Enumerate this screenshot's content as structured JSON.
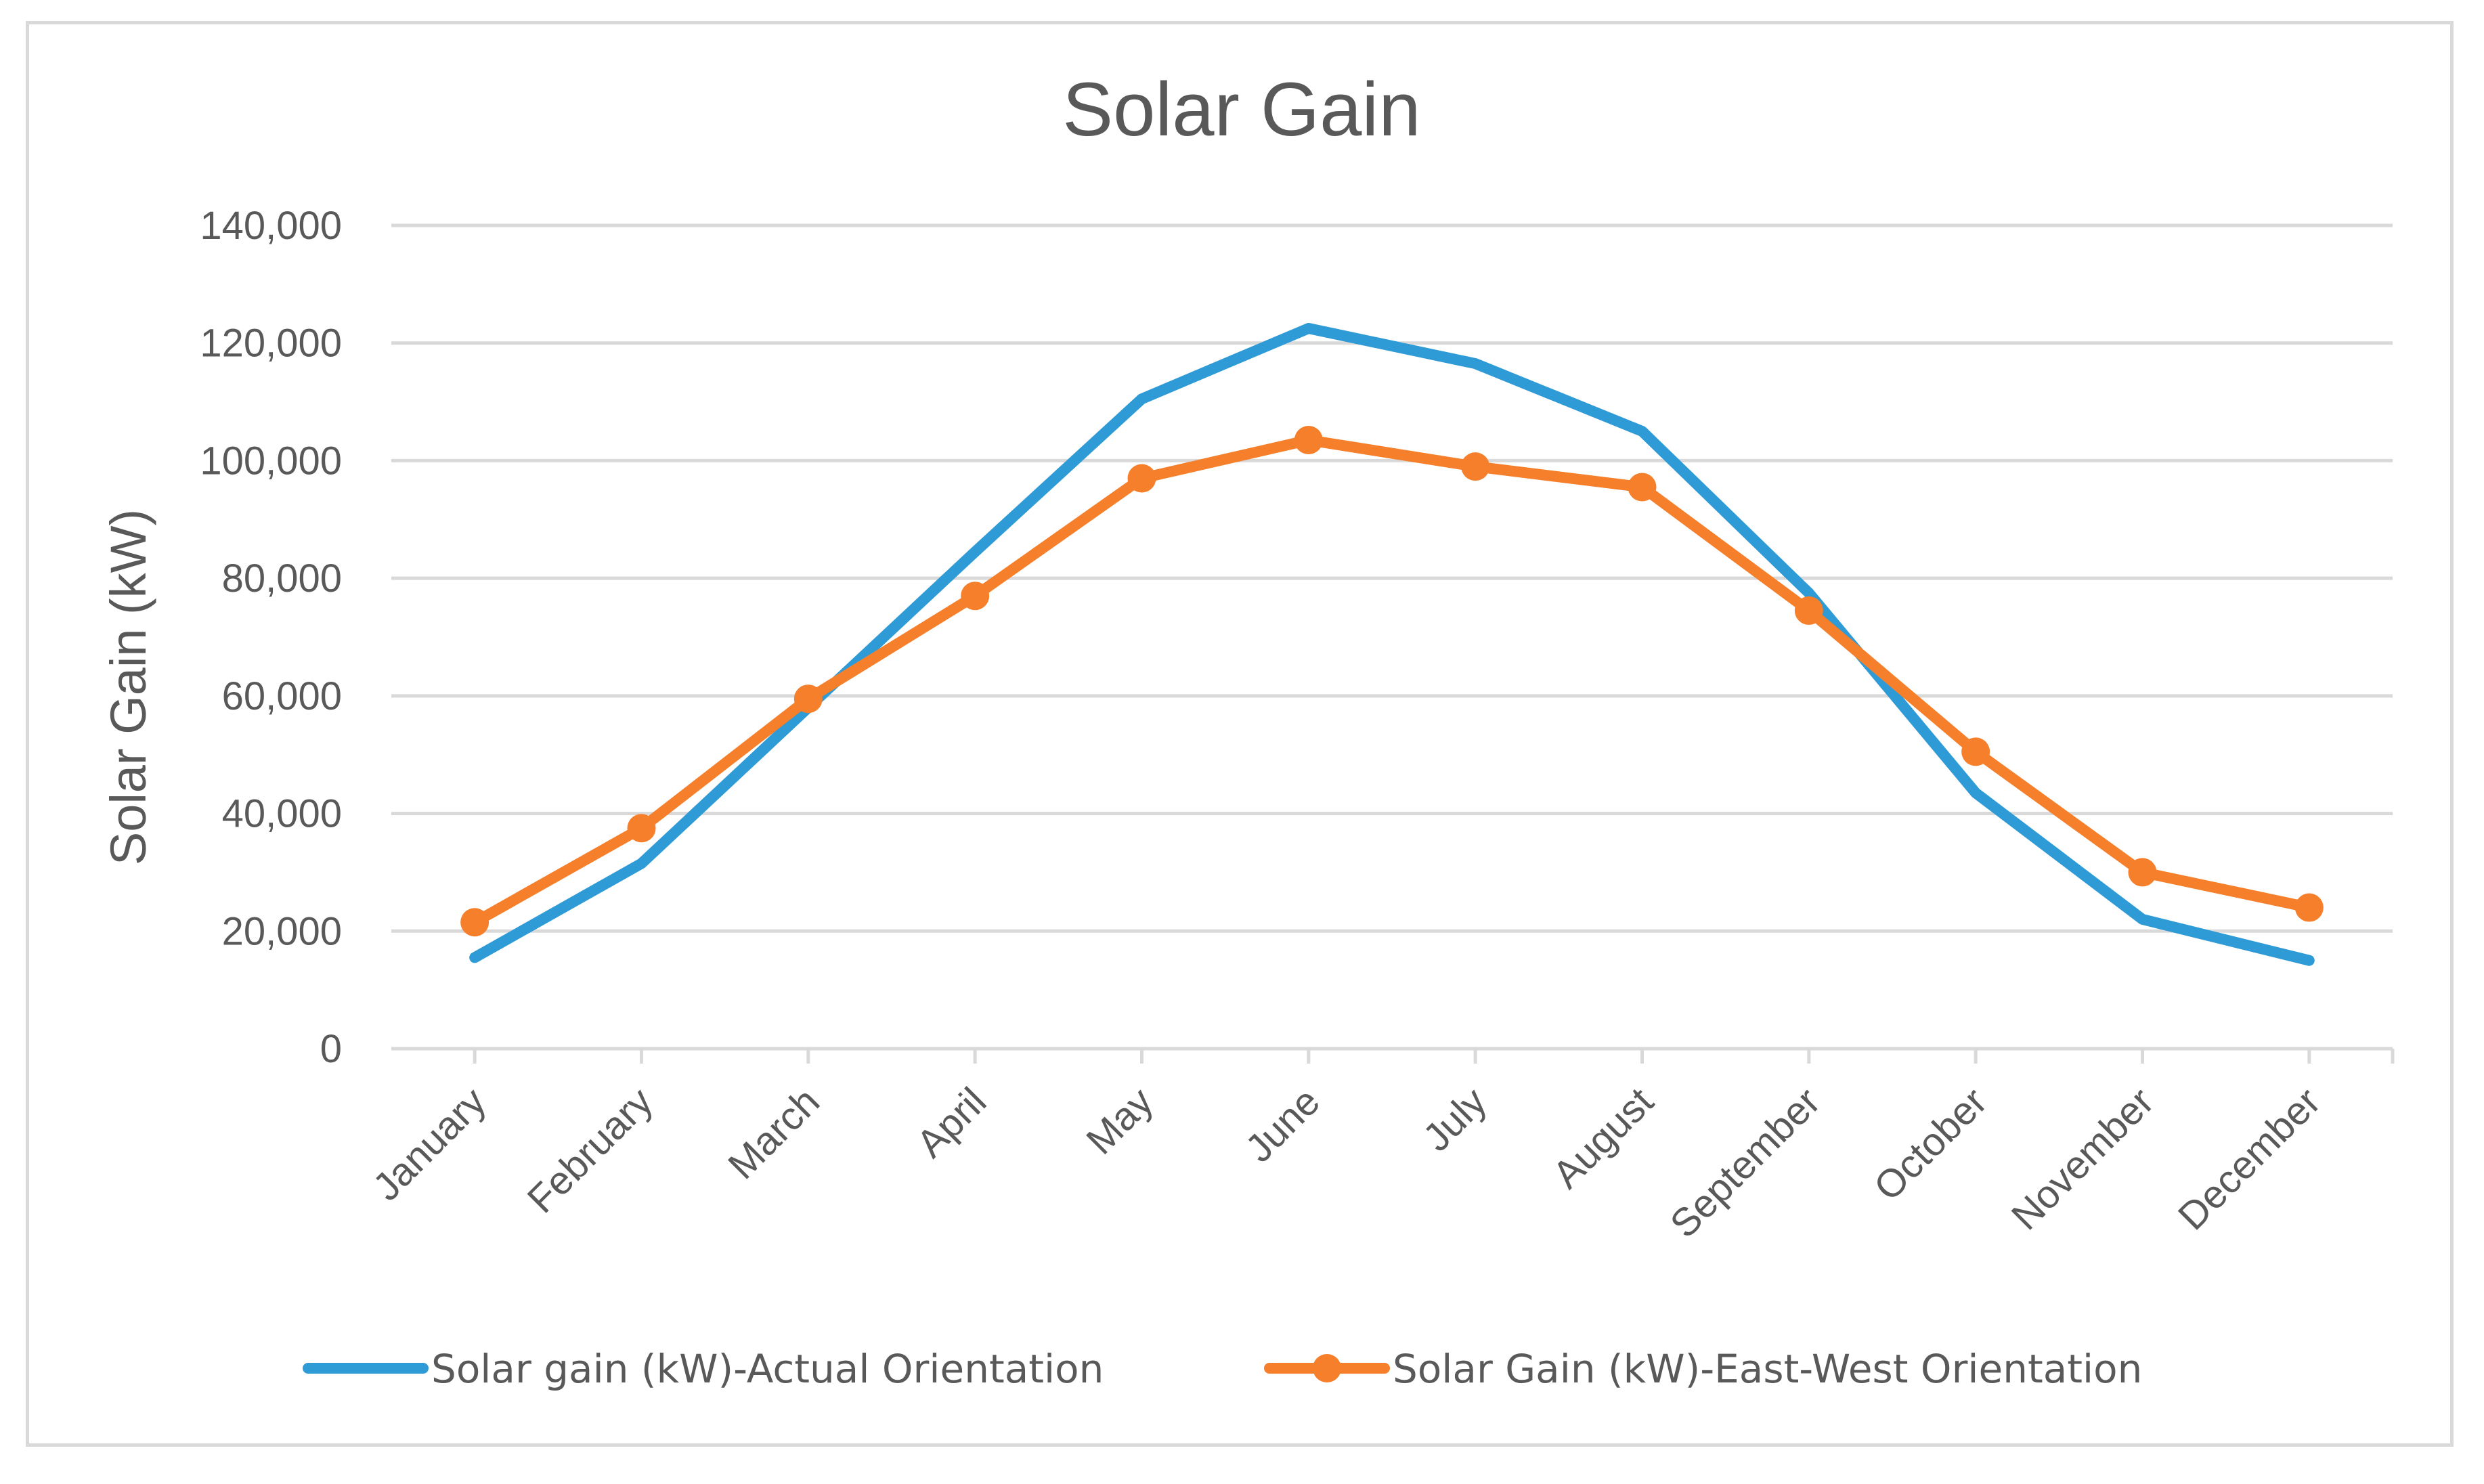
{
  "chart_data": {
    "type": "line",
    "title": "Solar Gain",
    "xlabel": "",
    "ylabel": "Solar Gain (kW)",
    "ylim": [
      0,
      140000
    ],
    "yticks": [
      0,
      20000,
      40000,
      60000,
      80000,
      100000,
      120000,
      140000
    ],
    "ytick_labels": [
      "0",
      "20,000",
      "40,000",
      "60,000",
      "80,000",
      "100,000",
      "120,000",
      "140,000"
    ],
    "grid": true,
    "legend_position": "bottom",
    "categories": [
      "January",
      "February",
      "March",
      "April",
      "May",
      "June",
      "July",
      "August",
      "September",
      "October",
      "November",
      "December"
    ],
    "series": [
      {
        "name": "Solar gain (kW)-Actual Orientation",
        "color": "#2e9ad6",
        "markers": false,
        "values": [
          15500,
          31500,
          58000,
          84500,
          110500,
          122500,
          116500,
          105000,
          77500,
          43500,
          22000,
          15000
        ]
      },
      {
        "name": "Solar Gain (kW)-East-West Orientation",
        "color": "#f57f2a",
        "markers": true,
        "values": [
          21500,
          37500,
          59500,
          77000,
          97000,
          103500,
          99000,
          95500,
          74500,
          50500,
          30000,
          24000
        ]
      }
    ]
  }
}
